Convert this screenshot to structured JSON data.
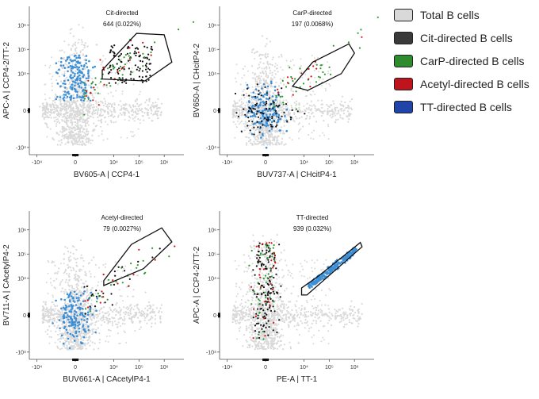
{
  "legend": [
    {
      "label": "Total B cells",
      "color": "#d9d9d9"
    },
    {
      "label": "Cit-directed B cells",
      "color": "#3a3a3a"
    },
    {
      "label": "CarP-directed B cells",
      "color": "#2e8b2e"
    },
    {
      "label": "Acetyl-directed B cells",
      "color": "#c0141c"
    },
    {
      "label": "TT-directed B cells",
      "color": "#2144a8"
    }
  ],
  "chart_data": [
    {
      "type": "scatter",
      "title": "",
      "gate_label": "Cit-directed",
      "gate_stats": "644 (0.022%)",
      "xlabel": "BV605-A | CCP4-1",
      "ylabel": "APC-A | CCP4-2/TT-2",
      "x_ticks": [
        "-10⁴",
        "0",
        "10⁴",
        "10⁵",
        "10⁶"
      ],
      "y_ticks": [
        "10⁶",
        "10⁵",
        "10⁴",
        "0",
        "-10⁴"
      ],
      "x_tick_values": [
        -10000,
        0,
        10000,
        100000,
        1000000
      ],
      "y_tick_values": [
        1000000,
        100000,
        10000,
        0,
        -10000
      ],
      "xscale": "biexponential",
      "yscale": "biexponential",
      "gate_polygon": [
        [
          3500,
          6000
        ],
        [
          170000,
          5000
        ],
        [
          2000000,
          30000
        ],
        [
          1000000,
          400000
        ],
        [
          80000,
          460000
        ],
        [
          3500,
          14000
        ]
      ],
      "populations": [
        "Total B cells",
        "Cit-directed B cells",
        "CarP-directed B cells",
        "Acetyl-directed B cells",
        "TT-directed B cells"
      ],
      "gated_events": 644,
      "gated_percent": 0.022
    },
    {
      "type": "scatter",
      "title": "",
      "gate_label": "CarP-directed",
      "gate_stats": "197 (0.0068%)",
      "xlabel": "BUV737-A | CHcitP4-1",
      "ylabel": "BV650-A | CHcitP4-2",
      "x_ticks": [
        "-10⁴",
        "0",
        "10⁴",
        "10⁵",
        "10⁶"
      ],
      "y_ticks": [
        "10⁶",
        "10⁵",
        "10⁴",
        "0",
        "-10⁴"
      ],
      "x_tick_values": [
        -10000,
        0,
        10000,
        100000,
        1000000
      ],
      "y_tick_values": [
        1000000,
        100000,
        10000,
        0,
        -10000
      ],
      "xscale": "biexponential",
      "yscale": "biexponential",
      "gate_polygon": [
        [
          3500,
          3000
        ],
        [
          14000,
          2500
        ],
        [
          300000,
          10000
        ],
        [
          1000000,
          70000
        ],
        [
          600000,
          170000
        ],
        [
          22000,
          30000
        ]
      ],
      "populations": [
        "Total B cells",
        "Cit-directed B cells",
        "CarP-directed B cells",
        "Acetyl-directed B cells",
        "TT-directed B cells"
      ],
      "gated_events": 197,
      "gated_percent": 0.0068
    },
    {
      "type": "scatter",
      "title": "",
      "gate_label": "Acetyl-directed",
      "gate_stats": "79 (0.0027%)",
      "xlabel": "BUV661-A | CAcetylP4-1",
      "ylabel": "BV711-A | CAcetylP4-2",
      "x_ticks": [
        "-10⁴",
        "0",
        "10⁴",
        "10⁵",
        "10⁶"
      ],
      "y_ticks": [
        "10⁶",
        "10⁵",
        "10⁴",
        "0",
        "-10⁴"
      ],
      "x_tick_values": [
        -10000,
        0,
        10000,
        100000,
        1000000
      ],
      "y_tick_values": [
        1000000,
        100000,
        10000,
        0,
        -10000
      ],
      "xscale": "biexponential",
      "yscale": "biexponential",
      "gate_polygon": [
        [
          4000,
          5000
        ],
        [
          150000,
          25000
        ],
        [
          2000000,
          320000
        ],
        [
          800000,
          1200000
        ],
        [
          50000,
          250000
        ],
        [
          4000,
          8000
        ]
      ],
      "populations": [
        "Total B cells",
        "Cit-directed B cells",
        "CarP-directed B cells",
        "Acetyl-directed B cells",
        "TT-directed B cells"
      ],
      "gated_events": 79,
      "gated_percent": 0.0027
    },
    {
      "type": "scatter",
      "title": "",
      "gate_label": "TT-directed",
      "gate_stats": "939 (0.032%)",
      "xlabel": "PE-A | TT-1",
      "ylabel": "APC-A | CCP4-2/TT-2",
      "x_ticks": [
        "-10⁴",
        "0",
        "10⁴",
        "10⁵",
        "10⁶"
      ],
      "y_ticks": [
        "10⁶",
        "10⁵",
        "10⁴",
        "0",
        "-10⁴"
      ],
      "x_tick_values": [
        -10000,
        0,
        10000,
        100000,
        1000000
      ],
      "y_tick_values": [
        1000000,
        100000,
        10000,
        0,
        -10000
      ],
      "xscale": "biexponential",
      "yscale": "biexponential",
      "gate_polygon": [
        [
          8000,
          2500
        ],
        [
          13000,
          2500
        ],
        [
          2000000,
          200000
        ],
        [
          1700000,
          300000
        ],
        [
          40000,
          13000
        ],
        [
          8000,
          4000
        ]
      ],
      "populations": [
        "Total B cells",
        "Cit-directed B cells",
        "CarP-directed B cells",
        "Acetyl-directed B cells",
        "TT-directed B cells"
      ],
      "gated_events": 939,
      "gated_percent": 0.032
    }
  ]
}
